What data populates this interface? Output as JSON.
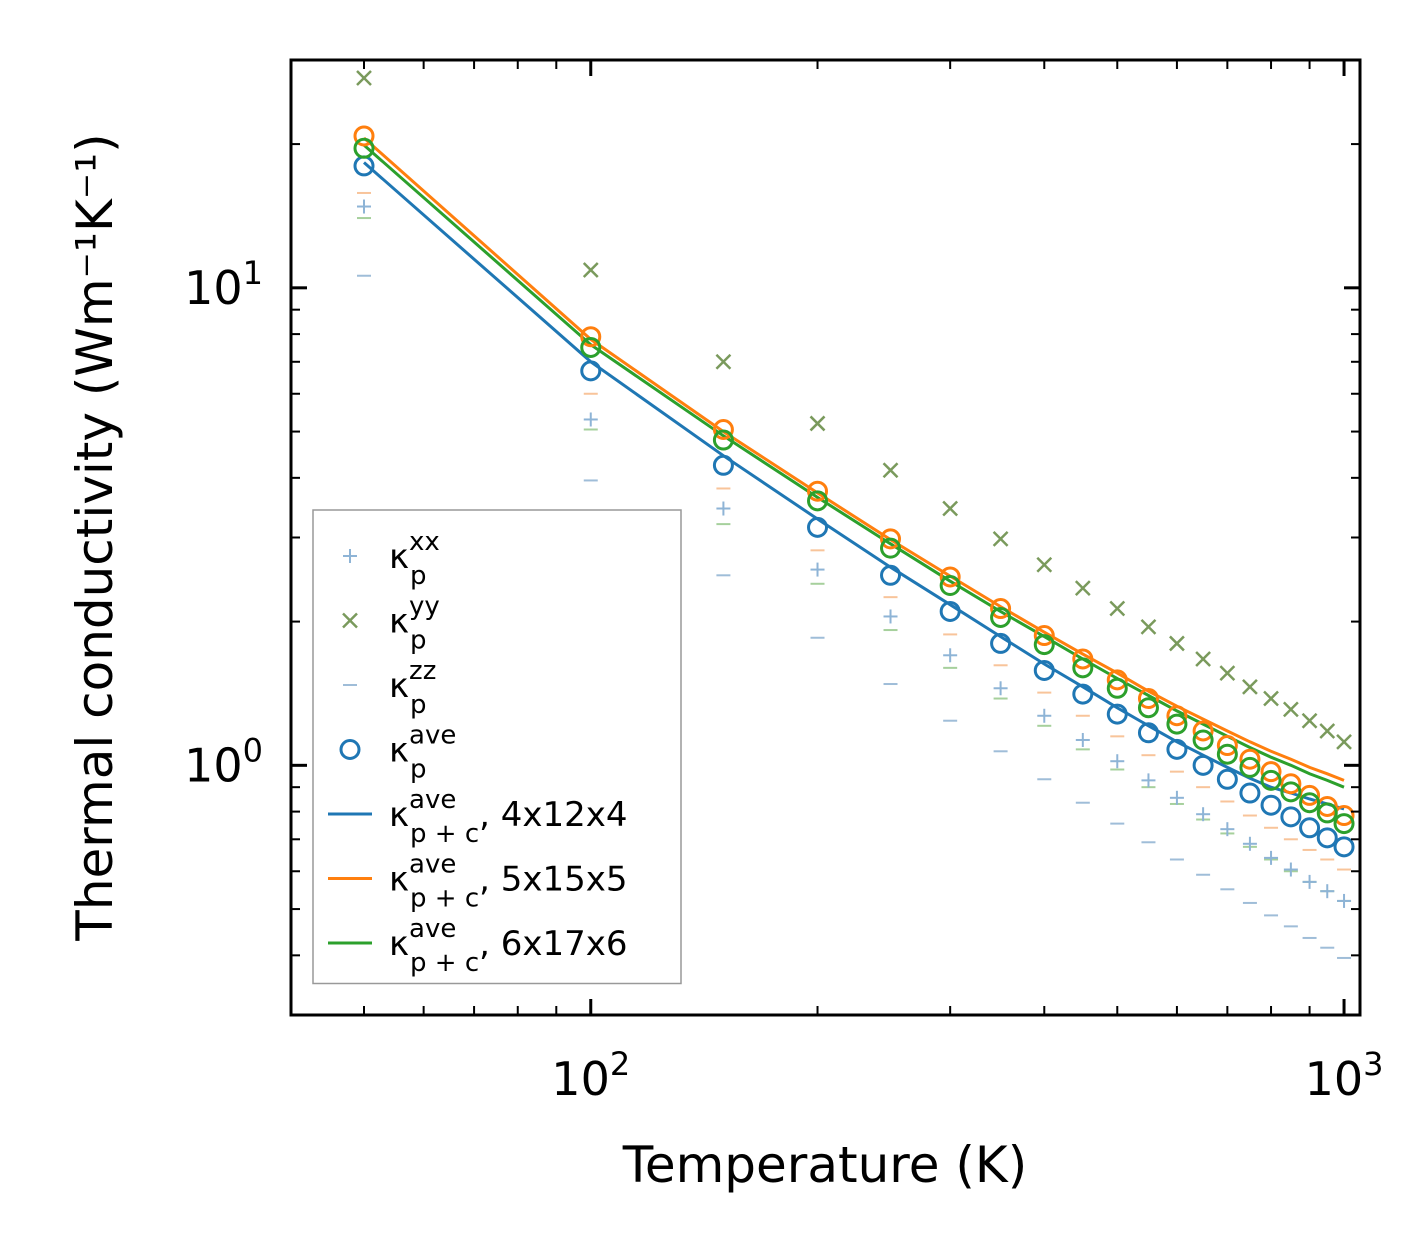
{
  "chart_data": {
    "type": "scatter",
    "xscale": "log",
    "yscale": "log",
    "xlabel": "Temperature (K)",
    "ylabel": "Thermal conductivity (Wm⁻¹K⁻¹)",
    "xlim": [
      40,
      1050
    ],
    "ylim": [
      0.3,
      30
    ],
    "xticks": [
      {
        "value": 100,
        "base": "10",
        "exp": "2"
      },
      {
        "value": 1000,
        "base": "10",
        "exp": "3"
      }
    ],
    "yticks": [
      {
        "value": 1,
        "base": "10",
        "exp": "0"
      },
      {
        "value": 10,
        "base": "10",
        "exp": "1"
      }
    ],
    "x": [
      50,
      100,
      150,
      200,
      250,
      300,
      350,
      400,
      450,
      500,
      550,
      600,
      650,
      700,
      750,
      800,
      850,
      900,
      950,
      1000
    ],
    "series": [
      {
        "name": "κp_xx",
        "label_base": "κ",
        "label_sub": "p",
        "label_sup": "xx",
        "label_rest": "",
        "marker": "plus",
        "color": "#8eb4d6",
        "values": [
          14.8,
          5.3,
          3.45,
          2.57,
          2.05,
          1.7,
          1.45,
          1.27,
          1.13,
          1.02,
          0.93,
          0.855,
          0.79,
          0.735,
          0.685,
          0.64,
          0.605,
          0.57,
          0.545,
          0.52
        ]
      },
      {
        "name": "κp_yy",
        "label_base": "κ",
        "label_sub": "p",
        "label_sup": "yy",
        "label_rest": "",
        "marker": "x",
        "color": "#7a9a5c",
        "values": [
          27.5,
          10.9,
          7.0,
          5.2,
          4.15,
          3.45,
          2.98,
          2.63,
          2.35,
          2.13,
          1.95,
          1.8,
          1.67,
          1.56,
          1.46,
          1.38,
          1.31,
          1.24,
          1.18,
          1.12
        ]
      },
      {
        "name": "κp_zz",
        "label_base": "κ",
        "label_sub": "p",
        "label_sup": "zz",
        "label_rest": "",
        "marker": "minus",
        "color": "#9fbdd8",
        "values": [
          10.6,
          3.95,
          2.5,
          1.85,
          1.48,
          1.24,
          1.07,
          0.935,
          0.835,
          0.755,
          0.69,
          0.635,
          0.59,
          0.55,
          0.515,
          0.485,
          0.46,
          0.435,
          0.415,
          0.395
        ]
      },
      {
        "name": "κp_ave 4x12x4",
        "label_base": "κ",
        "label_sub": "p",
        "label_sup": "ave",
        "label_rest": "",
        "marker": "circle",
        "color": "#1f77b4",
        "values": [
          18.0,
          6.7,
          4.25,
          3.15,
          2.5,
          2.1,
          1.8,
          1.58,
          1.41,
          1.28,
          1.17,
          1.08,
          1.0,
          0.935,
          0.875,
          0.825,
          0.78,
          0.74,
          0.705,
          0.675
        ]
      },
      {
        "name": "κp_ave 5x15x5",
        "label_base": "κ",
        "label_sub": "p",
        "label_sup": "ave",
        "label_rest": "",
        "marker": "circle",
        "color": "#ff7f0e",
        "legend": false,
        "values": [
          20.8,
          7.9,
          5.05,
          3.75,
          2.98,
          2.48,
          2.13,
          1.87,
          1.67,
          1.51,
          1.38,
          1.27,
          1.18,
          1.1,
          1.03,
          0.97,
          0.915,
          0.865,
          0.82,
          0.785
        ]
      },
      {
        "name": "κp_ave 6x17x6",
        "label_base": "κ",
        "label_sub": "p",
        "label_sup": "ave",
        "label_rest": "",
        "marker": "circle",
        "color": "#2ca02c",
        "legend": false,
        "values": [
          19.6,
          7.5,
          4.8,
          3.58,
          2.85,
          2.38,
          2.04,
          1.79,
          1.6,
          1.45,
          1.32,
          1.22,
          1.13,
          1.055,
          0.99,
          0.93,
          0.88,
          0.835,
          0.795,
          0.755
        ]
      },
      {
        "name": "κpzz 5x15x5 dashes",
        "marker": "minus",
        "color": "#f8c49a",
        "legend": false,
        "values": [
          15.8,
          6.0,
          3.8,
          2.82,
          2.25,
          1.88,
          1.62,
          1.42,
          1.27,
          1.15,
          1.05,
          0.97,
          0.9,
          0.84,
          0.785,
          0.74,
          0.7,
          0.665,
          0.635,
          0.605
        ]
      },
      {
        "name": "κpzz 6x17x6 dashes",
        "marker": "minus",
        "color": "#a6d09c",
        "legend": false,
        "values": [
          14.0,
          5.05,
          3.2,
          2.4,
          1.92,
          1.6,
          1.38,
          1.21,
          1.08,
          0.98,
          0.9,
          0.83,
          0.77,
          0.72,
          0.675,
          0.635,
          0.6,
          0.57,
          0.545,
          0.52
        ]
      },
      {
        "name": "κp+c_ave 4x12x4",
        "label_base": "κ",
        "label_sub": "p + c",
        "label_sup": "ave",
        "label_rest": ", 4x12x4",
        "marker": "line",
        "color": "#1f77b4",
        "values": [
          18.3,
          7.0,
          4.45,
          3.28,
          2.6,
          2.17,
          1.86,
          1.63,
          1.46,
          1.32,
          1.21,
          1.12,
          1.05,
          0.99,
          0.94,
          0.9,
          0.875,
          0.85,
          0.83,
          0.81
        ]
      },
      {
        "name": "κp+c_ave 5x15x5",
        "label_base": "κ",
        "label_sub": "p + c",
        "label_sup": "ave",
        "label_rest": ", 5x15x5",
        "marker": "line",
        "color": "#ff7f0e",
        "values": [
          20.6,
          7.8,
          5.0,
          3.72,
          2.97,
          2.49,
          2.15,
          1.9,
          1.71,
          1.56,
          1.43,
          1.33,
          1.25,
          1.18,
          1.12,
          1.07,
          1.03,
          0.99,
          0.96,
          0.93
        ]
      },
      {
        "name": "κp+c_ave 6x17x6",
        "label_base": "κ",
        "label_sub": "p + c",
        "label_sup": "ave",
        "label_rest": ", 6x17x6",
        "marker": "line",
        "color": "#2ca02c",
        "values": [
          19.9,
          7.6,
          4.9,
          3.64,
          2.91,
          2.43,
          2.1,
          1.86,
          1.67,
          1.52,
          1.4,
          1.3,
          1.22,
          1.15,
          1.09,
          1.04,
          1.0,
          0.96,
          0.93,
          0.9
        ]
      }
    ],
    "legend_position": "lower-left"
  }
}
